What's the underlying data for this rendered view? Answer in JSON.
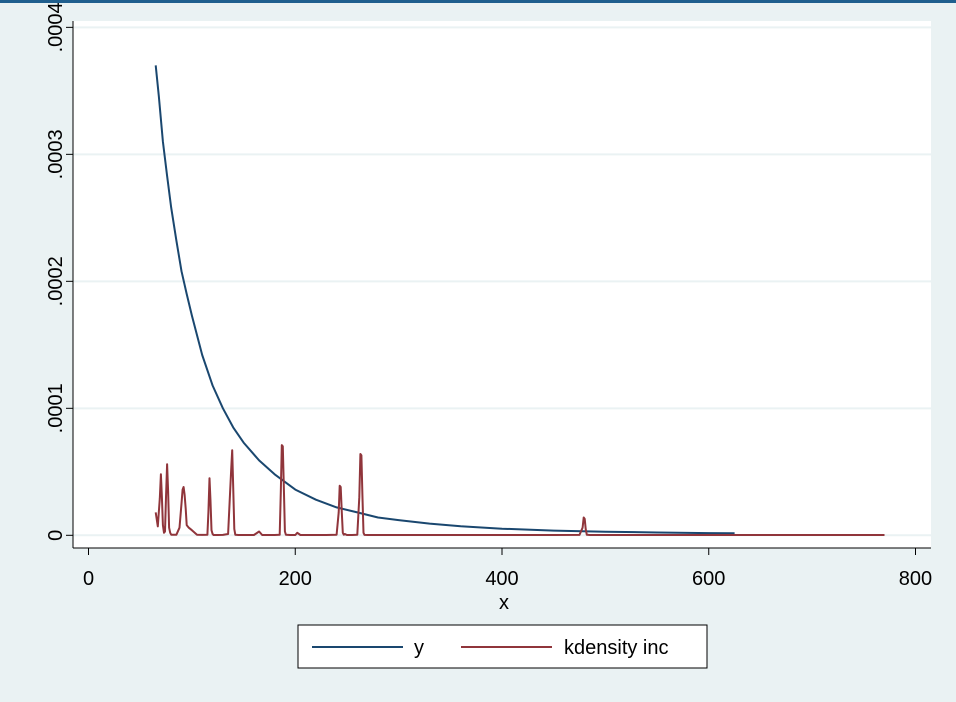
{
  "chart_data": {
    "type": "line",
    "xlabel": "x",
    "ylabel": "",
    "xlim": [
      -15,
      815
    ],
    "ylim": [
      -1e-05,
      0.000405
    ],
    "x_ticks": [
      0,
      200,
      400,
      600,
      800
    ],
    "x_tick_labels": [
      "0",
      "200",
      "400",
      "600",
      "800"
    ],
    "y_ticks": [
      0,
      0.0001,
      0.0002,
      0.0003,
      0.0004
    ],
    "y_tick_labels": [
      "0",
      ".0001",
      ".0002",
      ".0003",
      ".0004"
    ],
    "grid": true,
    "legend_position": "bottom",
    "colors": {
      "background": "#eaf2f3",
      "plot_background": "#ffffff",
      "y": "#1a476f",
      "kdensity": "#90353b",
      "grid": "#eaf2f3"
    },
    "series": [
      {
        "name": "y",
        "x": [
          65,
          68,
          72,
          76,
          80,
          85,
          90,
          95,
          100,
          110,
          120,
          130,
          140,
          150,
          165,
          180,
          200,
          220,
          240,
          260,
          280,
          300,
          330,
          360,
          400,
          450,
          500,
          550,
          600,
          625
        ],
        "y": [
          0.00037,
          0.000346,
          0.00031,
          0.000283,
          0.000258,
          0.000232,
          0.000208,
          0.00019,
          0.000173,
          0.000142,
          0.000118,
          0.0001,
          8.5e-05,
          7.3e-05,
          5.9e-05,
          4.8e-05,
          3.6e-05,
          2.8e-05,
          2.2e-05,
          1.8e-05,
          1.4e-05,
          1.2e-05,
          9.2e-06,
          7.2e-06,
          5.2e-06,
          3.7e-06,
          2.8e-06,
          2.2e-06,
          1.7e-06,
          1.6e-06
        ]
      },
      {
        "name": "kdensity inc",
        "x": [
          65,
          67,
          69,
          70,
          71,
          72,
          73,
          74,
          75,
          76,
          77,
          78,
          79,
          80,
          85,
          88,
          90,
          91,
          92,
          93,
          94,
          95,
          97,
          100,
          105,
          110,
          115,
          116,
          117,
          118,
          119,
          120,
          121,
          125,
          130,
          135,
          137,
          138,
          139,
          140,
          141,
          142,
          145,
          150,
          160,
          165,
          168,
          170,
          175,
          180,
          185,
          186,
          187,
          188,
          189,
          190,
          191,
          195,
          200,
          202,
          205,
          210,
          220,
          230,
          240,
          242,
          243,
          244,
          245,
          246,
          247,
          248,
          250,
          255,
          260,
          262,
          263,
          264,
          265,
          266,
          267,
          270,
          280,
          300,
          350,
          400,
          450,
          475,
          478,
          479,
          480,
          481,
          482,
          485,
          490,
          500,
          550,
          600,
          650,
          700,
          750,
          770
        ],
        "y": [
          1.8e-05,
          7e-06,
          2.9e-05,
          4.8e-05,
          3e-05,
          8e-06,
          2e-06,
          3e-06,
          3e-05,
          5.6e-05,
          3.5e-05,
          6e-06,
          2e-06,
          5e-07,
          5e-07,
          6e-06,
          2.5e-05,
          3.6e-05,
          3.8e-05,
          3.2e-05,
          2.1e-05,
          8e-06,
          6e-06,
          4e-06,
          5e-07,
          3e-07,
          5e-07,
          1.8e-05,
          4.5e-05,
          2.7e-05,
          4e-06,
          1e-06,
          2e-07,
          2e-07,
          3e-07,
          1e-06,
          3.4e-05,
          5.2e-05,
          6.7e-05,
          3.8e-05,
          5e-06,
          5e-07,
          2e-07,
          2e-07,
          2e-07,
          3e-06,
          2e-07,
          2e-07,
          2e-07,
          2e-07,
          5e-07,
          3.4e-05,
          7.1e-05,
          7e-05,
          3.6e-05,
          3e-06,
          5e-07,
          2e-07,
          2e-07,
          2e-06,
          2e-07,
          2e-07,
          2e-07,
          2e-07,
          5e-07,
          1.8e-05,
          3.9e-05,
          3.8e-05,
          1.8e-05,
          2e-06,
          5e-07,
          1e-06,
          2e-07,
          2e-07,
          5e-07,
          3e-05,
          6.4e-05,
          6.3e-05,
          3.2e-05,
          2e-06,
          3e-07,
          2e-07,
          2e-07,
          2e-07,
          2e-07,
          2e-07,
          2e-07,
          3e-07,
          6e-06,
          1.4e-05,
          1.3e-05,
          5e-06,
          5e-07,
          2e-07,
          2e-07,
          2e-07,
          2e-07,
          2e-07,
          2e-07,
          2e-07,
          2e-07,
          2e-07
        ]
      }
    ]
  }
}
